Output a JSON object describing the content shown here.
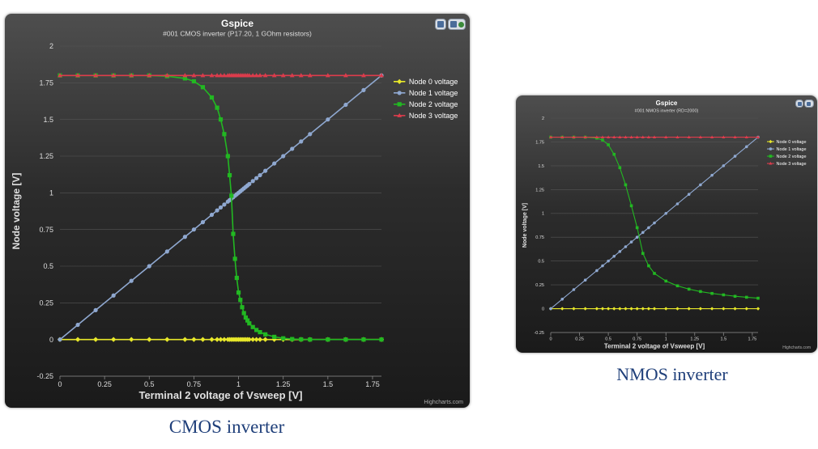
{
  "chart_data": [
    {
      "id": "cmos",
      "type": "line",
      "title": "Gspice",
      "subtitle": "#001 CMOS inverter (P17.20, 1 GOhm resistors)",
      "xlabel": "Terminal 2 voltage of Vsweep [V]",
      "ylabel": "Node voltage [V]",
      "xlim": [
        0,
        1.8
      ],
      "ylim": [
        -0.25,
        2
      ],
      "xticks": [
        "0",
        "0.25",
        "0.5",
        "0.75",
        "1",
        "1.25",
        "1.5",
        "1.75"
      ],
      "yticks": [
        "-0.25",
        "0",
        "0.25",
        "0.5",
        "0.75",
        "1",
        "1.25",
        "1.5",
        "1.75",
        "2"
      ],
      "credit": "Highcharts.com",
      "legend_position": "right",
      "grid": true,
      "x": [
        0,
        0.1,
        0.2,
        0.3,
        0.4,
        0.5,
        0.6,
        0.7,
        0.75,
        0.8,
        0.85,
        0.88,
        0.9,
        0.92,
        0.94,
        0.95,
        0.96,
        0.97,
        0.98,
        0.99,
        1.0,
        1.01,
        1.02,
        1.03,
        1.04,
        1.05,
        1.06,
        1.08,
        1.1,
        1.12,
        1.15,
        1.2,
        1.25,
        1.3,
        1.35,
        1.4,
        1.5,
        1.6,
        1.7,
        1.8
      ],
      "series": [
        {
          "name": "Node 0 voltage",
          "color": "#e8e82a",
          "marker": "diamond",
          "values": [
            0,
            0,
            0,
            0,
            0,
            0,
            0,
            0,
            0,
            0,
            0,
            0,
            0,
            0,
            0,
            0,
            0,
            0,
            0,
            0,
            0,
            0,
            0,
            0,
            0,
            0,
            0,
            0,
            0,
            0,
            0,
            0,
            0,
            0,
            0,
            0,
            0,
            0,
            0,
            0
          ]
        },
        {
          "name": "Node 1 voltage",
          "color": "#8fa8d0",
          "marker": "circle",
          "values": [
            0,
            0.1,
            0.2,
            0.3,
            0.4,
            0.5,
            0.6,
            0.7,
            0.75,
            0.8,
            0.85,
            0.88,
            0.9,
            0.92,
            0.94,
            0.95,
            0.96,
            0.97,
            0.98,
            0.99,
            1.0,
            1.01,
            1.02,
            1.03,
            1.04,
            1.05,
            1.06,
            1.08,
            1.1,
            1.12,
            1.15,
            1.2,
            1.25,
            1.3,
            1.35,
            1.4,
            1.5,
            1.6,
            1.7,
            1.8
          ]
        },
        {
          "name": "Node 2 voltage",
          "color": "#22b822",
          "marker": "square",
          "values": [
            1.8,
            1.8,
            1.8,
            1.8,
            1.8,
            1.8,
            1.795,
            1.78,
            1.76,
            1.72,
            1.65,
            1.58,
            1.5,
            1.4,
            1.25,
            1.12,
            0.98,
            0.72,
            0.55,
            0.42,
            0.32,
            0.27,
            0.22,
            0.18,
            0.15,
            0.13,
            0.11,
            0.085,
            0.065,
            0.05,
            0.035,
            0.018,
            0.008,
            0.003,
            0.001,
            0,
            0,
            0,
            0,
            0
          ]
        },
        {
          "name": "Node 3 voltage",
          "color": "#dd3c4c",
          "marker": "triangle",
          "values": [
            1.8,
            1.8,
            1.8,
            1.8,
            1.8,
            1.8,
            1.8,
            1.8,
            1.8,
            1.8,
            1.8,
            1.8,
            1.8,
            1.8,
            1.8,
            1.8,
            1.8,
            1.8,
            1.8,
            1.8,
            1.8,
            1.8,
            1.8,
            1.8,
            1.8,
            1.8,
            1.8,
            1.8,
            1.8,
            1.8,
            1.8,
            1.8,
            1.8,
            1.8,
            1.8,
            1.8,
            1.8,
            1.8,
            1.8,
            1.8
          ]
        }
      ]
    },
    {
      "id": "nmos",
      "type": "line",
      "title": "Gspice",
      "subtitle": "#001 NMOS inverter (RD=2000)",
      "xlabel": "Terminal 2 voltage of Vsweep [V]",
      "ylabel": "Node voltage [V]",
      "xlim": [
        0,
        1.8
      ],
      "ylim": [
        -0.25,
        2
      ],
      "xticks": [
        "0",
        "0.25",
        "0.5",
        "0.75",
        "1",
        "1.25",
        "1.5",
        "1.75"
      ],
      "yticks": [
        "-0.25",
        "0",
        "0.25",
        "0.5",
        "0.75",
        "1",
        "1.25",
        "1.5",
        "1.75",
        "2"
      ],
      "credit": "Highcharts.com",
      "legend_position": "right",
      "grid": true,
      "x": [
        0,
        0.1,
        0.2,
        0.3,
        0.4,
        0.45,
        0.5,
        0.55,
        0.6,
        0.65,
        0.7,
        0.75,
        0.8,
        0.85,
        0.9,
        1.0,
        1.1,
        1.2,
        1.3,
        1.4,
        1.5,
        1.6,
        1.7,
        1.8
      ],
      "series": [
        {
          "name": "Node 0 voltage",
          "color": "#e8e82a",
          "marker": "diamond",
          "values": [
            0,
            0,
            0,
            0,
            0,
            0,
            0,
            0,
            0,
            0,
            0,
            0,
            0,
            0,
            0,
            0,
            0,
            0,
            0,
            0,
            0,
            0,
            0,
            0
          ]
        },
        {
          "name": "Node 1 voltage",
          "color": "#8fa8d0",
          "marker": "circle",
          "values": [
            0,
            0.1,
            0.2,
            0.3,
            0.4,
            0.45,
            0.5,
            0.55,
            0.6,
            0.65,
            0.7,
            0.75,
            0.8,
            0.85,
            0.9,
            1.0,
            1.1,
            1.2,
            1.3,
            1.4,
            1.5,
            1.6,
            1.7,
            1.8
          ]
        },
        {
          "name": "Node 2 voltage",
          "color": "#22b822",
          "marker": "square",
          "values": [
            1.8,
            1.8,
            1.8,
            1.8,
            1.79,
            1.77,
            1.72,
            1.62,
            1.48,
            1.3,
            1.08,
            0.85,
            0.58,
            0.45,
            0.37,
            0.29,
            0.24,
            0.205,
            0.18,
            0.16,
            0.145,
            0.13,
            0.12,
            0.11
          ]
        },
        {
          "name": "Node 3 voltage",
          "color": "#dd3c4c",
          "marker": "triangle",
          "values": [
            1.8,
            1.8,
            1.8,
            1.8,
            1.8,
            1.8,
            1.8,
            1.8,
            1.8,
            1.8,
            1.8,
            1.8,
            1.8,
            1.8,
            1.8,
            1.8,
            1.8,
            1.8,
            1.8,
            1.8,
            1.8,
            1.8,
            1.8,
            1.8
          ]
        }
      ]
    }
  ],
  "captions": {
    "cmos": "CMOS inverter",
    "nmos": "NMOS inverter"
  }
}
